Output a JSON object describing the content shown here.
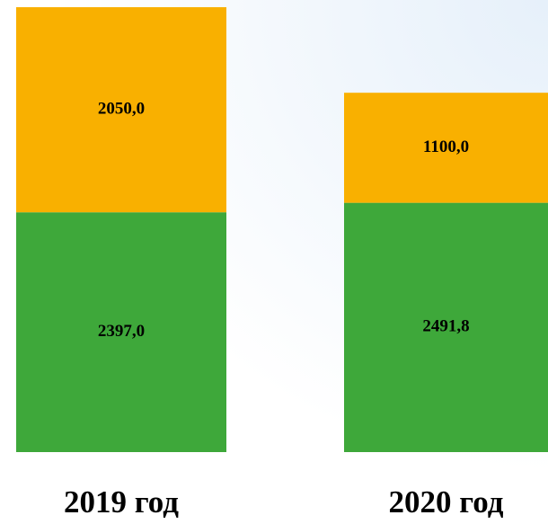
{
  "chart_data": {
    "type": "stacked-bar",
    "categories": [
      "2019 год",
      "2020 год"
    ],
    "series": [
      {
        "color": "#3ea83a",
        "values": [
          2397.0,
          2491.8
        ],
        "value_labels": [
          "2397,0",
          "2491,8"
        ]
      },
      {
        "color": "#f9b000",
        "values": [
          2050.0,
          1100.0
        ],
        "value_labels": [
          "2050,0",
          "1100,0"
        ]
      }
    ]
  }
}
